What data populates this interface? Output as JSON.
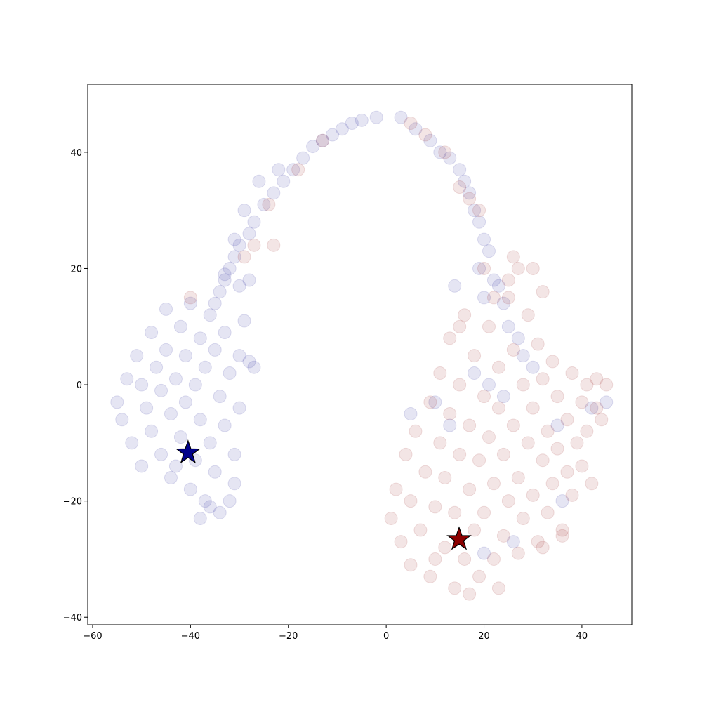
{
  "chart_data": {
    "type": "scatter",
    "xlim": [
      -61,
      50.2
    ],
    "ylim": [
      -41.3,
      51.7
    ],
    "xticks": [
      {
        "value": -60,
        "label": "−60"
      },
      {
        "value": -40,
        "label": "−40"
      },
      {
        "value": -20,
        "label": "−20"
      },
      0,
      20,
      40
    ],
    "yticks": [
      {
        "value": -40,
        "label": "−40"
      },
      {
        "value": -20,
        "label": "−20"
      },
      0,
      20,
      40
    ],
    "series": [
      {
        "color": "#00008b",
        "marker": "circle",
        "x": [
          -55,
          -54,
          -53,
          -52,
          -51,
          -50,
          -50,
          -49,
          -48,
          -48,
          -47,
          -46,
          -46,
          -45,
          -45,
          -44,
          -44,
          -43,
          -42,
          -42,
          -41,
          -41,
          -40,
          -40,
          -39,
          -39,
          -38,
          -38,
          -37,
          -37,
          -36,
          -36,
          -35,
          -35,
          -34,
          -34,
          -33,
          -33,
          -32,
          -31,
          -31,
          -30,
          -30,
          -29,
          -28,
          -27,
          -32,
          -36,
          -38,
          -43,
          -2,
          -5,
          -7,
          -9,
          -11,
          -13,
          -15,
          -17,
          -19,
          -21,
          -23,
          -25,
          -27,
          -28,
          -30,
          -31,
          -32,
          -33,
          -34,
          -35,
          -26,
          -22,
          -29,
          -31,
          -33,
          -30,
          -28,
          3,
          6,
          9,
          11,
          13,
          15,
          16,
          17,
          18,
          19,
          20,
          21,
          19,
          22,
          23,
          14,
          20,
          24,
          25,
          27,
          28,
          30,
          18,
          21,
          24,
          10,
          5,
          13,
          35,
          42,
          45,
          36,
          26,
          20
        ],
        "y": [
          -3,
          -6,
          1,
          -10,
          5,
          -14,
          0,
          -4,
          9,
          -8,
          3,
          -12,
          -1,
          13,
          6,
          -16,
          -5,
          1,
          10,
          -9,
          -3,
          5,
          -18,
          14,
          -13,
          0,
          8,
          -6,
          -20,
          3,
          12,
          -10,
          -15,
          6,
          -22,
          -2,
          9,
          -7,
          2,
          -12,
          -17,
          5,
          -4,
          11,
          4,
          3,
          -20,
          -21,
          -23,
          -14,
          46,
          45.5,
          45,
          44,
          43,
          42,
          41,
          39,
          37,
          35,
          33,
          31,
          28,
          26,
          24,
          22,
          20,
          18,
          16,
          14,
          35,
          37,
          30,
          25,
          19,
          17,
          18,
          46,
          44,
          42,
          40,
          39,
          37,
          35,
          33,
          30,
          28,
          25,
          23,
          20,
          18,
          17,
          17,
          15,
          14,
          10,
          8,
          5,
          3,
          2,
          0,
          -2,
          -3,
          -5,
          -7,
          -7,
          -4,
          -3,
          -20,
          -27,
          -29
        ]
      },
      {
        "color": "#8b0000",
        "marker": "circle",
        "x": [
          1,
          2,
          3,
          4,
          5,
          5,
          6,
          7,
          8,
          9,
          9,
          10,
          11,
          11,
          12,
          12,
          13,
          13,
          14,
          14,
          15,
          15,
          16,
          16,
          17,
          17,
          18,
          18,
          19,
          19,
          20,
          20,
          21,
          21,
          22,
          22,
          23,
          23,
          24,
          24,
          25,
          25,
          26,
          26,
          27,
          27,
          28,
          28,
          29,
          29,
          30,
          30,
          31,
          31,
          32,
          32,
          33,
          33,
          34,
          34,
          35,
          35,
          36,
          37,
          37,
          38,
          38,
          39,
          40,
          40,
          41,
          41,
          42,
          43,
          43,
          44,
          45,
          32,
          36,
          25,
          27,
          30,
          32,
          20,
          22,
          15,
          17,
          23,
          10,
          26,
          5,
          8,
          12,
          15,
          17,
          19,
          -13,
          -18,
          -24,
          -27,
          -29,
          -23,
          -40
        ],
        "y": [
          -23,
          -18,
          -27,
          -12,
          -31,
          -20,
          -8,
          -25,
          -15,
          -3,
          -33,
          -21,
          -10,
          2,
          -28,
          -16,
          -5,
          8,
          -35,
          -22,
          -12,
          0,
          -30,
          12,
          -18,
          -7,
          5,
          -25,
          -33,
          -13,
          -2,
          -22,
          10,
          -9,
          -30,
          -17,
          -4,
          3,
          -26,
          -12,
          15,
          -20,
          -7,
          6,
          -16,
          -29,
          0,
          -23,
          -10,
          12,
          -4,
          -19,
          -27,
          7,
          -13,
          1,
          -8,
          -22,
          -17,
          4,
          -2,
          -11,
          -25,
          -6,
          -15,
          2,
          -19,
          -10,
          -3,
          -14,
          0,
          -8,
          -17,
          -4,
          1,
          -6,
          0,
          -28,
          -26,
          18,
          20,
          20,
          16,
          20,
          15,
          10,
          -36,
          -35,
          -30,
          22,
          45,
          43,
          40,
          34,
          32,
          30,
          42,
          37,
          31,
          24,
          22,
          24,
          15
        ]
      },
      {
        "color": "#00008b",
        "marker": "star",
        "x": [
          -40.5
        ],
        "y": [
          -11.7
        ]
      },
      {
        "color": "#8b0000",
        "marker": "star",
        "x": [
          14.9
        ],
        "y": [
          -26.6
        ]
      }
    ]
  }
}
